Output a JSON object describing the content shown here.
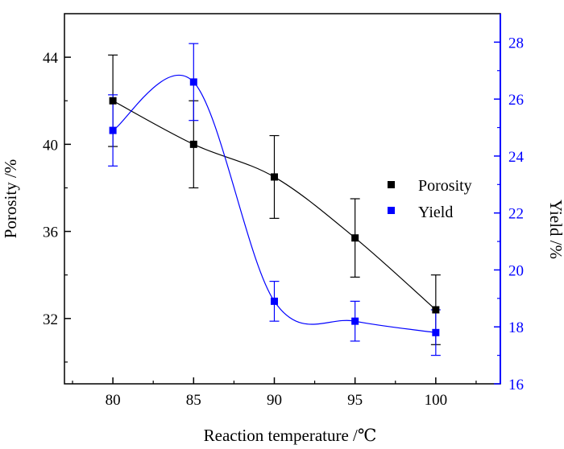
{
  "chart_data": {
    "type": "scatter",
    "xlabel": "Reaction temperature /℃",
    "ylabel_left": "Porosity /%",
    "ylabel_right": "Yield /%",
    "x_range": [
      77,
      104
    ],
    "x_ticks": [
      80,
      85,
      90,
      95,
      100
    ],
    "y_left_range": [
      29,
      46
    ],
    "y_left_ticks": [
      32,
      36,
      40,
      44
    ],
    "y_right_range": [
      16,
      29
    ],
    "y_right_ticks": [
      16,
      18,
      20,
      22,
      24,
      26,
      28
    ],
    "legend_position": "center-right",
    "series": [
      {
        "name": "Porosity",
        "axis": "left",
        "color": "#000000",
        "marker": "square",
        "x": [
          80,
          85,
          90,
          95,
          100
        ],
        "y": [
          42.0,
          40.0,
          38.5,
          35.7,
          32.4
        ],
        "y_err": [
          2.1,
          2.0,
          1.9,
          1.8,
          1.6
        ],
        "fit": "smooth"
      },
      {
        "name": "Yield",
        "axis": "right",
        "color": "#0000ff",
        "marker": "square",
        "x": [
          80,
          85,
          90,
          95,
          100
        ],
        "y": [
          24.9,
          26.6,
          18.9,
          18.2,
          17.8
        ],
        "y_err": [
          1.25,
          1.35,
          0.7,
          0.7,
          0.8
        ],
        "fit": "smooth"
      }
    ]
  }
}
